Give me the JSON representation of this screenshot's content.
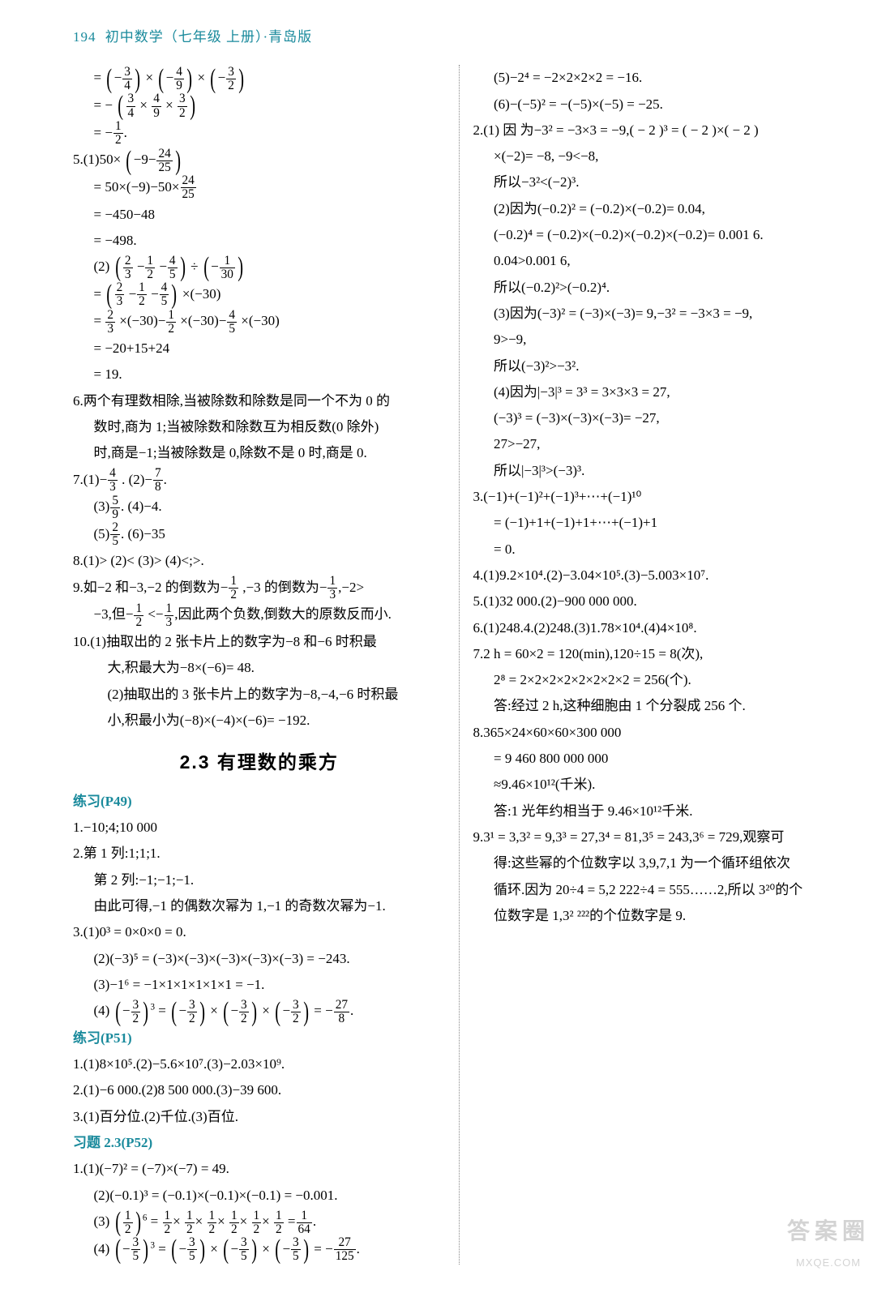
{
  "header": {
    "page_num": "194",
    "title": "初中数学（七年级  上册）·青岛版"
  },
  "left": {
    "l1": "=",
    "l1b": "3",
    "l1c": "4",
    "l1d": "×",
    "l1e": "4",
    "l1f": "9",
    "l1g": "×",
    "l1h": "3",
    "l1i": "2",
    "l2": "= −",
    "l2b": "3",
    "l2c": "4",
    "l2d": "×",
    "l2e": "4",
    "l2f": "9",
    "l2g": "×",
    "l2h": "3",
    "l2i": "2",
    "l3": "= −",
    "l3b": "1",
    "l3c": "2",
    "l3d": ".",
    "p5": "5.",
    "p5a": "(1)50×",
    "p5b": "−9−",
    "p5c": "24",
    "p5d": "25",
    "p5e": "= 50×(−9)−50×",
    "p5f": "24",
    "p5g": "25",
    "p5h": "= −450−48",
    "p5i": "= −498.",
    "p5j": "(2)",
    "p5k": "2",
    "p5l": "3",
    "p5m": "−",
    "p5n": "1",
    "p5o": "2",
    "p5p": "−",
    "p5q": "4",
    "p5r": "5",
    "p5s": "÷",
    "p5t": "1",
    "p5u": "30",
    "p5v": "=",
    "p5w": "2",
    "p5x": "3",
    "p5y": "−",
    "p5z": "1",
    "p5aa": "2",
    "p5ab": "−",
    "p5ac": "4",
    "p5ad": "5",
    "p5ae": "×(−30)",
    "p5af": "=",
    "p5ag": "2",
    "p5ah": "3",
    "p5ai": "×(−30)−",
    "p5aj": "1",
    "p5ak": "2",
    "p5al": "×(−30)−",
    "p5am": "4",
    "p5an": "5",
    "p5ao": "×(−30)",
    "p5ap": "= −20+15+24",
    "p5aq": "= 19.",
    "p6a": "6.两个有理数相除,当被除数和除数是同一个不为 0 的",
    "p6b": "数时,商为 1;当被除数和除数互为相反数(0 除外)",
    "p6c": "时,商是−1;当被除数是 0,除数不是 0 时,商是 0.",
    "p7": "7.",
    "p7a": "(1)−",
    "p7b": "4",
    "p7c": "3",
    "p7d": ".   (2)−",
    "p7e": "7",
    "p7f": "8",
    "p7g": ".",
    "p7h": "(3)",
    "p7i": "5",
    "p7j": "9",
    "p7k": ".   (4)−4.",
    "p7l": "(5)",
    "p7m": "2",
    "p7n": "5",
    "p7o": ".   (6)−35",
    "p8": "8.(1)>   (2)<   (3)>   (4)<;>.",
    "p9a": "9.如−2 和−3,−2 的倒数为−",
    "p9b": "1",
    "p9c": "2",
    "p9d": ",−3 的倒数为−",
    "p9e": "1",
    "p9f": "3",
    "p9g": ",−2>",
    "p9h": "−3,但−",
    "p9i": "1",
    "p9j": "2",
    "p9k": "<−",
    "p9l": "1",
    "p9m": "3",
    "p9n": ",因此两个负数,倒数大的原数反而小.",
    "p10a": "10.(1)抽取出的 2 张卡片上的数字为−8 和−6 时积最",
    "p10b": "大,积最大为−8×(−6)= 48.",
    "p10c": "(2)抽取出的 3 张卡片上的数字为−8,−4,−6 时积最",
    "p10d": "小,积最小为(−8)×(−4)×(−6)= −192.",
    "sec_title": "2.3  有理数的乘方",
    "ex49_label": "练习(P49)",
    "ex49_1": "1.−10;4;10 000",
    "ex49_2a": "2.第 1 列:1;1;1.",
    "ex49_2b": "第 2 列:−1;−1;−1.",
    "ex49_2c": "由此可得,−1 的偶数次幂为 1,−1 的奇数次幂为−1.",
    "ex49_3": "3.",
    "ex49_3a": "(1)0³ = 0×0×0 = 0.",
    "ex49_3b": "(2)(−3)⁵ = (−3)×(−3)×(−3)×(−3)×(−3) = −243.",
    "ex49_3c": "(3)−1⁶ = −1×1×1×1×1×1 = −1."
  },
  "right": {
    "r0": "(4)",
    "r0a": "3",
    "r0b": "2",
    "r0c": "=",
    "r0d": "3",
    "r0e": "2",
    "r0f": "×",
    "r0g": "3",
    "r0h": "2",
    "r0i": "×",
    "r0j": "3",
    "r0k": "2",
    "r0l": "= −",
    "r0m": "27",
    "r0n": "8",
    "r0o": ".",
    "ex51_label": "练习(P51)",
    "ex51_1": "1.(1)8×10⁵.(2)−5.6×10⁷.(3)−2.03×10⁹.",
    "ex51_2": "2.(1)−6 000.(2)8 500 000.(3)−39 600.",
    "ex51_3": "3.(1)百分位.(2)千位.(3)百位.",
    "xt23_label": "习题 2.3(P52)",
    "xt1": "1.",
    "xt1a": "(1)(−7)² = (−7)×(−7) = 49.",
    "xt1b": "(2)(−0.1)³ = (−0.1)×(−0.1)×(−0.1) = −0.001.",
    "xt1c": "(3)",
    "xt1d": "1",
    "xt1e": "2",
    "xt1f": "=",
    "xt1g": "1",
    "xt1h": "2",
    "xt1i": "×",
    "xt1j": "1",
    "xt1k": "2",
    "xt1l": "×",
    "xt1m": "1",
    "xt1n": "2",
    "xt1o": "×",
    "xt1p": "1",
    "xt1q": "2",
    "xt1r": "×",
    "xt1s": "1",
    "xt1t": "2",
    "xt1u": "×",
    "xt1v": "1",
    "xt1w": "2",
    "xt1x": "=",
    "xt1y": "1",
    "xt1z": "64",
    "xt1aa": ".",
    "xt1ab": "(4)",
    "xt1ac": "3",
    "xt1ad": "5",
    "xt1ae": "=",
    "xt1af": "3",
    "xt1ag": "5",
    "xt1ah": "×",
    "xt1ai": "3",
    "xt1aj": "5",
    "xt1ak": "×",
    "xt1al": "3",
    "xt1am": "5",
    "xt1an": "= −",
    "xt1ao": "27",
    "xt1ap": "125",
    "xt1aq": ".",
    "xt1ar": "(5)−2⁴ = −2×2×2×2 = −16.",
    "xt1as": "(6)−(−5)² = −(−5)×(−5) = −25.",
    "xt2": "2.",
    "xt2a": "(1) 因 为−3² = −3×3 = −9,( − 2 )³ = ( − 2 )×( − 2 )",
    "xt2b": "×(−2)= −8, −9<−8,",
    "xt2c": "所以−3²<(−2)³.",
    "xt2d": "(2)因为(−0.2)² = (−0.2)×(−0.2)= 0.04,",
    "xt2e": "(−0.2)⁴ = (−0.2)×(−0.2)×(−0.2)×(−0.2)= 0.001 6.",
    "xt2f": "0.04>0.001 6,",
    "xt2g": "所以(−0.2)²>(−0.2)⁴.",
    "xt2h": "(3)因为(−3)² = (−3)×(−3)= 9,−3² = −3×3 = −9,",
    "xt2i": "9>−9,",
    "xt2j": "所以(−3)²>−3².",
    "xt2k": "(4)因为|−3|³ = 3³ = 3×3×3 = 27,",
    "xt2l": "(−3)³ = (−3)×(−3)×(−3)= −27,",
    "xt2m": "27>−27,",
    "xt2n": "所以|−3|³>(−3)³.",
    "xt3a": "3.(−1)+(−1)²+(−1)³+⋯+(−1)¹⁰",
    "xt3b": "= (−1)+1+(−1)+1+⋯+(−1)+1",
    "xt3c": "= 0.",
    "xt4": "4.(1)9.2×10⁴.(2)−3.04×10⁵.(3)−5.003×10⁷.",
    "xt5": "5.(1)32 000.(2)−900 000 000.",
    "xt6": "6.(1)248.4.(2)248.(3)1.78×10⁴.(4)4×10⁸.",
    "xt7a": "7.2 h = 60×2 = 120(min),120÷15 = 8(次),",
    "xt7b": "2⁸ = 2×2×2×2×2×2×2×2 = 256(个).",
    "xt7c": "答:经过 2 h,这种细胞由 1 个分裂成 256 个.",
    "xt8a": "8.365×24×60×60×300 000",
    "xt8b": "= 9 460 800 000 000",
    "xt8c": "≈9.46×10¹²(千米).",
    "xt8d": "答:1 光年约相当于 9.46×10¹²千米.",
    "xt9a": "9.3¹ = 3,3² = 9,3³ = 27,3⁴ = 81,3⁵ = 243,3⁶ = 729,观察可",
    "xt9b": "得:这些幂的个位数字以 3,9,7,1 为一个循环组依次",
    "xt9c": "循环.因为 20÷4 = 5,2 222÷4 = 555……2,所以 3²⁰的个",
    "xt9d": "位数字是 1,3² ²²²的个位数字是 9."
  },
  "watermark": {
    "line1": "答案圈",
    "line2": "MXQE.COM"
  }
}
